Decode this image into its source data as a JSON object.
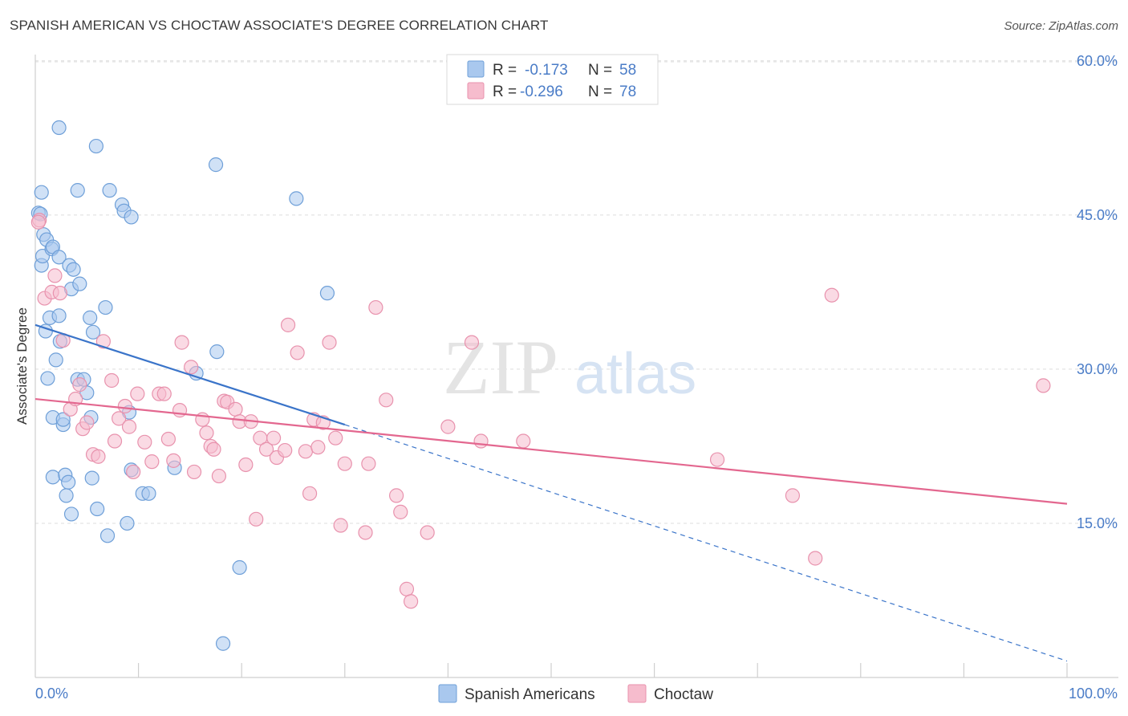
{
  "title": "SPANISH AMERICAN VS CHOCTAW ASSOCIATE'S DEGREE CORRELATION CHART",
  "source": "Source: ZipAtlas.com",
  "watermark": {
    "zip": "ZIP",
    "atlas": "atlas"
  },
  "legend": {
    "rows": [
      {
        "r_label": "R =",
        "r_value": "-0.173",
        "n_label": "N =",
        "n_value": "58"
      },
      {
        "r_label": "R =",
        "r_value": "-0.296",
        "n_label": "N =",
        "n_value": "78"
      }
    ]
  },
  "colors": {
    "blue_fill": "#a9c8ee",
    "blue_stroke": "#6e9fd8",
    "blue_line": "#3a74c9",
    "pink_fill": "#f6bccd",
    "pink_stroke": "#e892ad",
    "pink_line": "#e3678f",
    "accent_text": "#4a7cc7"
  },
  "chart_data": {
    "type": "scatter",
    "title": "SPANISH AMERICAN VS CHOCTAW ASSOCIATE'S DEGREE CORRELATION CHART",
    "xlabel": "",
    "ylabel": "Associate's Degree",
    "xlim": [
      0,
      100
    ],
    "ylim": [
      0,
      63.5
    ],
    "x_tick_labels": [
      "0.0%",
      "100.0%"
    ],
    "y_ticks": [
      15,
      30,
      45,
      60
    ],
    "y_tick_labels": [
      "15.0%",
      "30.0%",
      "45.0%",
      "60.0%"
    ],
    "grid": true,
    "legend_position": "top-center",
    "series": [
      {
        "name": "Spanish Americans",
        "r": -0.173,
        "n": 58,
        "trend": {
          "x0": 0,
          "y0": 34.3,
          "x1": 30,
          "y1": 24.6,
          "dashed_to_x": 100,
          "dashed_to_y": 1.6
        },
        "points": [
          [
            0.3,
            45.2
          ],
          [
            0.6,
            47.2
          ],
          [
            0.6,
            40.1
          ],
          [
            0.8,
            43.1
          ],
          [
            0.7,
            41.0
          ],
          [
            1.0,
            33.7
          ],
          [
            1.1,
            42.6
          ],
          [
            1.2,
            29.1
          ],
          [
            1.4,
            35.0
          ],
          [
            1.6,
            41.7
          ],
          [
            1.7,
            41.9
          ],
          [
            1.7,
            25.3
          ],
          [
            1.7,
            19.5
          ],
          [
            2.0,
            30.9
          ],
          [
            2.3,
            35.2
          ],
          [
            2.4,
            32.7
          ],
          [
            2.3,
            40.9
          ],
          [
            2.7,
            24.6
          ],
          [
            2.7,
            25.1
          ],
          [
            2.9,
            19.7
          ],
          [
            3.0,
            17.7
          ],
          [
            3.2,
            19.0
          ],
          [
            3.3,
            40.1
          ],
          [
            3.5,
            37.8
          ],
          [
            3.5,
            15.9
          ],
          [
            3.7,
            39.7
          ],
          [
            4.1,
            29.0
          ],
          [
            4.3,
            38.3
          ],
          [
            4.7,
            29.0
          ],
          [
            5.0,
            27.7
          ],
          [
            5.3,
            35.0
          ],
          [
            5.4,
            25.3
          ],
          [
            5.5,
            19.4
          ],
          [
            5.6,
            33.6
          ],
          [
            6.0,
            16.4
          ],
          [
            2.3,
            53.5
          ],
          [
            5.9,
            51.7
          ],
          [
            4.1,
            47.4
          ],
          [
            7.2,
            47.4
          ],
          [
            8.4,
            46.0
          ],
          [
            8.6,
            45.4
          ],
          [
            9.3,
            44.8
          ],
          [
            6.8,
            36.0
          ],
          [
            7.0,
            13.8
          ],
          [
            8.9,
            15.0
          ],
          [
            9.1,
            25.8
          ],
          [
            9.3,
            20.2
          ],
          [
            10.4,
            17.9
          ],
          [
            11.0,
            17.9
          ],
          [
            13.5,
            20.4
          ],
          [
            15.6,
            29.6
          ],
          [
            17.6,
            31.7
          ],
          [
            17.5,
            49.9
          ],
          [
            19.8,
            10.7
          ],
          [
            18.2,
            3.3
          ],
          [
            25.3,
            46.6
          ],
          [
            28.3,
            37.4
          ],
          [
            0.5,
            45.1
          ]
        ]
      },
      {
        "name": "Choctaw",
        "r": -0.296,
        "n": 78,
        "trend": {
          "x0": 0,
          "y0": 27.1,
          "x1": 100,
          "y1": 16.9
        },
        "points": [
          [
            0.4,
            44.5
          ],
          [
            0.9,
            36.9
          ],
          [
            1.6,
            37.5
          ],
          [
            1.9,
            39.1
          ],
          [
            2.4,
            37.4
          ],
          [
            2.7,
            32.8
          ],
          [
            3.4,
            26.1
          ],
          [
            3.9,
            27.1
          ],
          [
            4.3,
            28.5
          ],
          [
            4.6,
            24.2
          ],
          [
            5.0,
            24.8
          ],
          [
            5.6,
            21.7
          ],
          [
            6.1,
            21.5
          ],
          [
            6.6,
            32.7
          ],
          [
            7.4,
            28.9
          ],
          [
            7.7,
            23.0
          ],
          [
            8.1,
            25.2
          ],
          [
            8.7,
            26.4
          ],
          [
            9.1,
            24.4
          ],
          [
            9.5,
            20.0
          ],
          [
            9.9,
            27.6
          ],
          [
            10.6,
            22.9
          ],
          [
            11.3,
            21.0
          ],
          [
            12.0,
            27.6
          ],
          [
            12.5,
            27.6
          ],
          [
            12.9,
            23.2
          ],
          [
            13.4,
            21.1
          ],
          [
            14.0,
            26.0
          ],
          [
            14.2,
            32.6
          ],
          [
            15.1,
            30.2
          ],
          [
            15.4,
            20.0
          ],
          [
            16.2,
            25.1
          ],
          [
            16.6,
            23.8
          ],
          [
            17.0,
            22.5
          ],
          [
            17.3,
            22.2
          ],
          [
            17.8,
            19.6
          ],
          [
            18.3,
            26.9
          ],
          [
            18.6,
            26.8
          ],
          [
            19.4,
            26.1
          ],
          [
            19.8,
            24.9
          ],
          [
            20.4,
            20.7
          ],
          [
            20.9,
            24.9
          ],
          [
            21.4,
            15.4
          ],
          [
            21.8,
            23.3
          ],
          [
            22.4,
            22.2
          ],
          [
            23.1,
            23.3
          ],
          [
            23.4,
            21.4
          ],
          [
            24.2,
            22.1
          ],
          [
            24.5,
            34.3
          ],
          [
            25.4,
            31.6
          ],
          [
            26.2,
            22.0
          ],
          [
            26.6,
            17.9
          ],
          [
            27.0,
            25.1
          ],
          [
            27.4,
            22.4
          ],
          [
            27.9,
            24.8
          ],
          [
            28.5,
            32.6
          ],
          [
            29.1,
            23.3
          ],
          [
            29.6,
            14.8
          ],
          [
            30.0,
            20.8
          ],
          [
            32.0,
            14.1
          ],
          [
            32.3,
            20.8
          ],
          [
            33.0,
            36.0
          ],
          [
            34.0,
            27.0
          ],
          [
            35.0,
            17.7
          ],
          [
            35.4,
            16.1
          ],
          [
            36.0,
            8.6
          ],
          [
            36.4,
            7.4
          ],
          [
            38.0,
            14.1
          ],
          [
            40.0,
            24.4
          ],
          [
            42.3,
            32.6
          ],
          [
            43.2,
            23.0
          ],
          [
            47.3,
            23.0
          ],
          [
            66.1,
            21.2
          ],
          [
            73.4,
            17.7
          ],
          [
            75.6,
            11.6
          ],
          [
            77.2,
            37.2
          ],
          [
            97.7,
            28.4
          ],
          [
            0.3,
            44.3
          ]
        ]
      }
    ]
  }
}
